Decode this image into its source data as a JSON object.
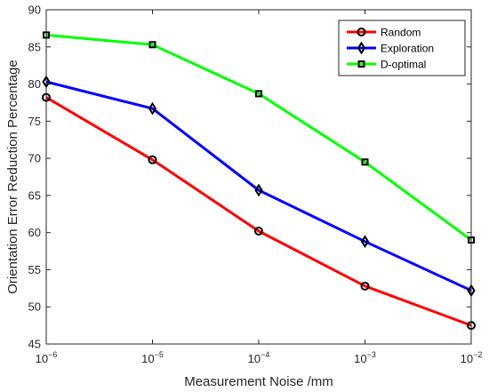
{
  "chart_data": {
    "type": "line",
    "title": "",
    "xlabel": "Measurement Noise /mm",
    "ylabel": "Orientation Error Reduction Percentage",
    "x_scale": "log",
    "x": [
      1e-06,
      1e-05,
      0.0001,
      0.001,
      0.01
    ],
    "x_tick_labels": [
      {
        "base": "10",
        "exp": "−6"
      },
      {
        "base": "10",
        "exp": "−5"
      },
      {
        "base": "10",
        "exp": "−4"
      },
      {
        "base": "10",
        "exp": "−3"
      },
      {
        "base": "10",
        "exp": "−2"
      }
    ],
    "ylim": [
      45,
      90
    ],
    "y_ticks": [
      45,
      50,
      55,
      60,
      65,
      70,
      75,
      80,
      85,
      90
    ],
    "grid": false,
    "legend_position": "top-right",
    "series": [
      {
        "name": "Random",
        "color": "#ff0000",
        "marker": "circle",
        "values": [
          78.2,
          69.8,
          60.2,
          52.8,
          47.5
        ]
      },
      {
        "name": "Exploration",
        "color": "#0000ff",
        "marker": "diamond",
        "values": [
          80.3,
          76.7,
          65.7,
          58.8,
          52.2
        ]
      },
      {
        "name": "D-optimal",
        "color": "#00ff00",
        "marker": "square",
        "values": [
          86.6,
          85.3,
          78.7,
          69.5,
          59.0
        ]
      }
    ]
  }
}
